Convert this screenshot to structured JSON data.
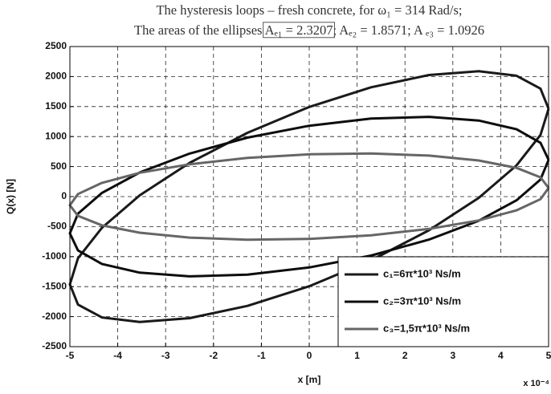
{
  "chart_data": {
    "type": "line",
    "title": "The hysteresis loops – fresh concrete, for ω₁ = 314 Rad/s;",
    "subtitle_parts": [
      "The areas of the ellipses ",
      "Aₑ₁ = 2.3207",
      "; Aₑ₂ = 1.8571; A ₑ₃ = 1.0926"
    ],
    "xlabel": "x [m]",
    "ylabel": "Q(x) [N]",
    "x_multiplier": "x 10⁻⁴",
    "x": [
      5,
      4.83,
      4.33,
      3.54,
      2.5,
      1.29,
      0,
      -1.29,
      -2.5,
      -3.54,
      -4.33,
      -4.83,
      -5,
      -4.83,
      -4.33,
      -3.54,
      -2.5,
      -1.29,
      0,
      1.29,
      2.5,
      3.54,
      4.33,
      4.83,
      5
    ],
    "series": [
      {
        "name": "c₁=6π*10³ Ns/m",
        "color": "#1a1a1a",
        "values": [
          1463,
          1799,
          2014,
          2090,
          2025,
          1821,
          1493,
          1063,
          561,
          22,
          -520,
          -1027,
          -1463,
          -1799,
          -2014,
          -2090,
          -2025,
          -1821,
          -1493,
          -1063,
          -561,
          -22,
          520,
          1027,
          1463
        ]
      },
      {
        "name": "c₂=3π*10³ Ns/m",
        "color": "#0d0d0d",
        "values": [
          612,
          897,
          1121,
          1268,
          1329,
          1299,
          1181,
          983,
          717,
          402,
          61,
          -285,
          -612,
          -897,
          -1121,
          -1268,
          -1329,
          -1299,
          -1181,
          -983,
          -717,
          -402,
          -61,
          285,
          612
        ]
      },
      {
        "name": "c₃=1,5π*10³ Ns/m",
        "color": "#666666",
        "values": [
          144,
          321,
          478,
          601,
          683,
          718,
          705,
          644,
          539,
          397,
          228,
          43,
          -144,
          -321,
          -478,
          -601,
          -683,
          -718,
          -705,
          -644,
          -539,
          -397,
          -228,
          -43,
          144
        ]
      }
    ],
    "xlim": [
      -5,
      5
    ],
    "xticks": [
      -5,
      -4,
      -3,
      -2,
      -1,
      0,
      1,
      2,
      3,
      4,
      5
    ],
    "ylim": [
      -2500,
      2500
    ],
    "yticks": [
      -2500,
      -2000,
      -1500,
      -1000,
      -500,
      0,
      500,
      1000,
      1500,
      2000,
      2500
    ],
    "grid": true,
    "legend": "lower right"
  }
}
